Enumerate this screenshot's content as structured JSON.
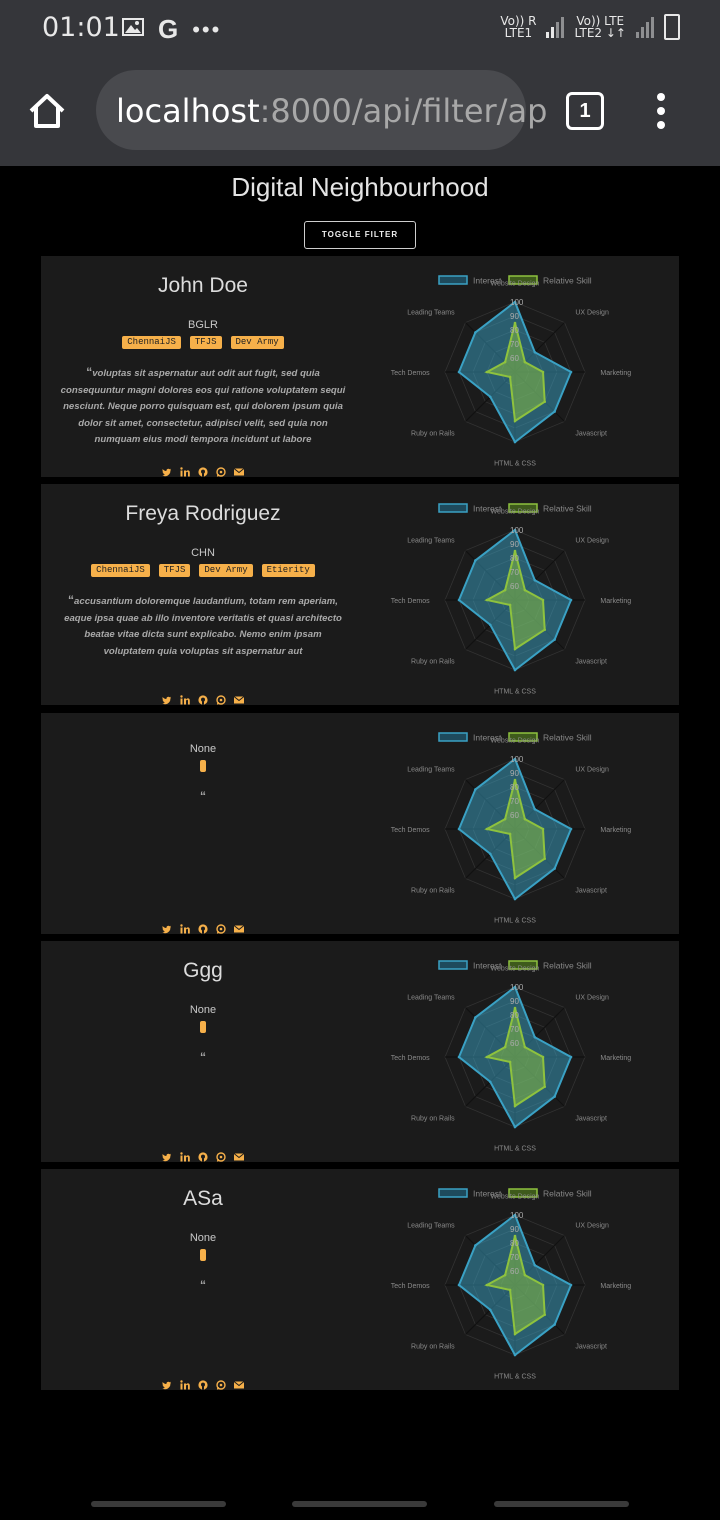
{
  "status_bar": {
    "time": "01:01",
    "net1_top": "Vo)) R",
    "net1_bottom": "LTE1",
    "net2_top": "Vo)) LTE",
    "net2_bottom": "LTE2 ↓↑"
  },
  "browser": {
    "url_host": "localhost",
    "url_rest": ":8000/api/filter/ap",
    "tab_count": "1"
  },
  "page": {
    "title": "Digital Neighbourhood",
    "toggle_label": "TOGGLE FILTER"
  },
  "chart_legend": {
    "interest": "Interest",
    "skill": "Relative Skill"
  },
  "colors": {
    "interest": "#3aa1c4",
    "skill": "#8ec23e",
    "tag": "#f6b04a",
    "card": "#1b1b1b"
  },
  "cards": [
    {
      "name": "John Doe",
      "location": "BGLR",
      "tags": [
        "ChennaiJS",
        "TFJS",
        "Dev Army"
      ],
      "bio": "voluptas sit aspernatur aut odit aut fugit, sed quia consequuntur magni dolores eos qui ratione voluptatem sequi nesciunt. Neque porro quisquam est, qui dolorem ipsum quia dolor sit amet, consectetur, adipisci velit, sed quia non numquam eius modi tempora incidunt ut labore"
    },
    {
      "name": "Freya Rodriguez",
      "location": "CHN",
      "tags": [
        "ChennaiJS",
        "TFJS",
        "Dev Army",
        "Etierity"
      ],
      "bio": "accusantium doloremque laudantium, totam rem aperiam, eaque ipsa quae ab illo inventore veritatis et quasi architecto beatae vitae dicta sunt explicabo. Nemo enim ipsam voluptatem quia voluptas sit aspernatur aut"
    },
    {
      "name": "",
      "location": "None",
      "tags": [],
      "bio": ""
    },
    {
      "name": "Ggg",
      "location": "None",
      "tags": [],
      "bio": ""
    },
    {
      "name": "ASa",
      "location": "None",
      "tags": [],
      "bio": ""
    }
  ],
  "chart_data": [
    {
      "type": "radar",
      "axes": [
        "Website Design",
        "UX Design",
        "Marketing",
        "Javascript",
        "HTML & CSS",
        "Ruby on Rails",
        "Tech Demos",
        "Leading Teams"
      ],
      "r_ticks": [
        "60",
        "70",
        "80",
        "90",
        "100"
      ],
      "r_range": [
        50,
        100
      ],
      "series": [
        {
          "name": "Interest",
          "values": [
            100,
            70,
            90,
            90,
            100,
            75,
            90,
            90
          ]
        },
        {
          "name": "Relative Skill",
          "values": [
            85,
            60,
            70,
            80,
            85,
            55,
            70,
            60
          ]
        }
      ]
    },
    {
      "type": "radar",
      "axes": [
        "Website Design",
        "UX Design",
        "Marketing",
        "Javascript",
        "HTML & CSS",
        "Ruby on Rails",
        "Tech Demos",
        "Leading Teams"
      ],
      "r_ticks": [
        "60",
        "70",
        "80",
        "90",
        "100"
      ],
      "r_range": [
        50,
        100
      ],
      "series": [
        {
          "name": "Interest",
          "values": [
            100,
            70,
            90,
            90,
            100,
            75,
            90,
            90
          ]
        },
        {
          "name": "Relative Skill",
          "values": [
            85,
            60,
            70,
            80,
            85,
            55,
            70,
            60
          ]
        }
      ]
    },
    {
      "type": "radar",
      "axes": [
        "Website Design",
        "UX Design",
        "Marketing",
        "Javascript",
        "HTML & CSS",
        "Ruby on Rails",
        "Tech Demos",
        "Leading Teams"
      ],
      "r_ticks": [
        "60",
        "70",
        "80",
        "90",
        "100"
      ],
      "r_range": [
        50,
        100
      ],
      "series": [
        {
          "name": "Interest",
          "values": [
            100,
            70,
            90,
            90,
            100,
            75,
            90,
            90
          ]
        },
        {
          "name": "Relative Skill",
          "values": [
            85,
            60,
            70,
            80,
            85,
            55,
            70,
            60
          ]
        }
      ]
    },
    {
      "type": "radar",
      "axes": [
        "Website Design",
        "UX Design",
        "Marketing",
        "Javascript",
        "HTML & CSS",
        "Ruby on Rails",
        "Tech Demos",
        "Leading Teams"
      ],
      "r_ticks": [
        "60",
        "70",
        "80",
        "90",
        "100"
      ],
      "r_range": [
        50,
        100
      ],
      "series": [
        {
          "name": "Interest",
          "values": [
            100,
            70,
            90,
            90,
            100,
            75,
            90,
            90
          ]
        },
        {
          "name": "Relative Skill",
          "values": [
            85,
            60,
            70,
            80,
            85,
            55,
            70,
            60
          ]
        }
      ]
    },
    {
      "type": "radar",
      "axes": [
        "Website Design",
        "UX Design",
        "Marketing",
        "Javascript",
        "HTML & CSS",
        "Ruby on Rails",
        "Tech Demos",
        "Leading Teams"
      ],
      "r_ticks": [
        "60",
        "70",
        "80",
        "90",
        "100"
      ],
      "r_range": [
        50,
        100
      ],
      "series": [
        {
          "name": "Interest",
          "values": [
            100,
            70,
            90,
            90,
            100,
            75,
            90,
            90
          ]
        },
        {
          "name": "Relative Skill",
          "values": [
            85,
            60,
            70,
            80,
            85,
            55,
            70,
            60
          ]
        }
      ]
    }
  ]
}
